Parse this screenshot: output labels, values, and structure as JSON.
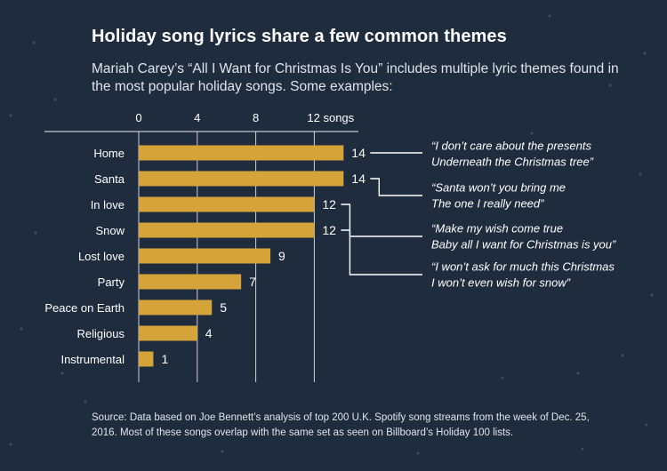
{
  "title": "Holiday song lyrics share a few common themes",
  "subtitle": "Mariah Carey’s “All I Want for Christmas Is You” includes multiple lyric themes found in the most popular holiday songs. Some examples:",
  "source": "Source: Data based on Joe Bennett’s analysis of top 200 U.K. Spotify song streams from the week of Dec. 25, 2016. Most of these songs overlap with the same set as seen on Billboard’s Holiday 100 lists.",
  "colors": {
    "background": "#1f2c3e",
    "bar": "#d4a43a",
    "text": "#ffffff",
    "axis": "#e9edf2"
  },
  "chart_data": {
    "type": "bar",
    "orientation": "horizontal",
    "categories": [
      "Home",
      "Santa",
      "In love",
      "Snow",
      "Lost love",
      "Party",
      "Peace on Earth",
      "Religious",
      "Instrumental"
    ],
    "values": [
      14,
      14,
      12,
      12,
      9,
      7,
      5,
      4,
      1
    ],
    "xlim": [
      0,
      14
    ],
    "xticks": [
      0,
      4,
      8,
      12
    ],
    "xtick_labels": [
      "0",
      "4",
      "8",
      "12 songs"
    ],
    "grid": "vertical",
    "annotations": [
      {
        "category": "Home",
        "lines": [
          "“I don’t care about the presents",
          "Underneath the Christmas tree”"
        ]
      },
      {
        "category": "Santa",
        "lines": [
          "“Santa won’t you bring me",
          "The one I really need”"
        ]
      },
      {
        "category": "In love",
        "lines": [
          "“Make my wish come true",
          "Baby all I want for Christmas is you”"
        ]
      },
      {
        "category": "Snow",
        "lines": [
          "“I won’t ask for much this Christmas",
          "I won’t even wish for snow”"
        ]
      }
    ]
  }
}
